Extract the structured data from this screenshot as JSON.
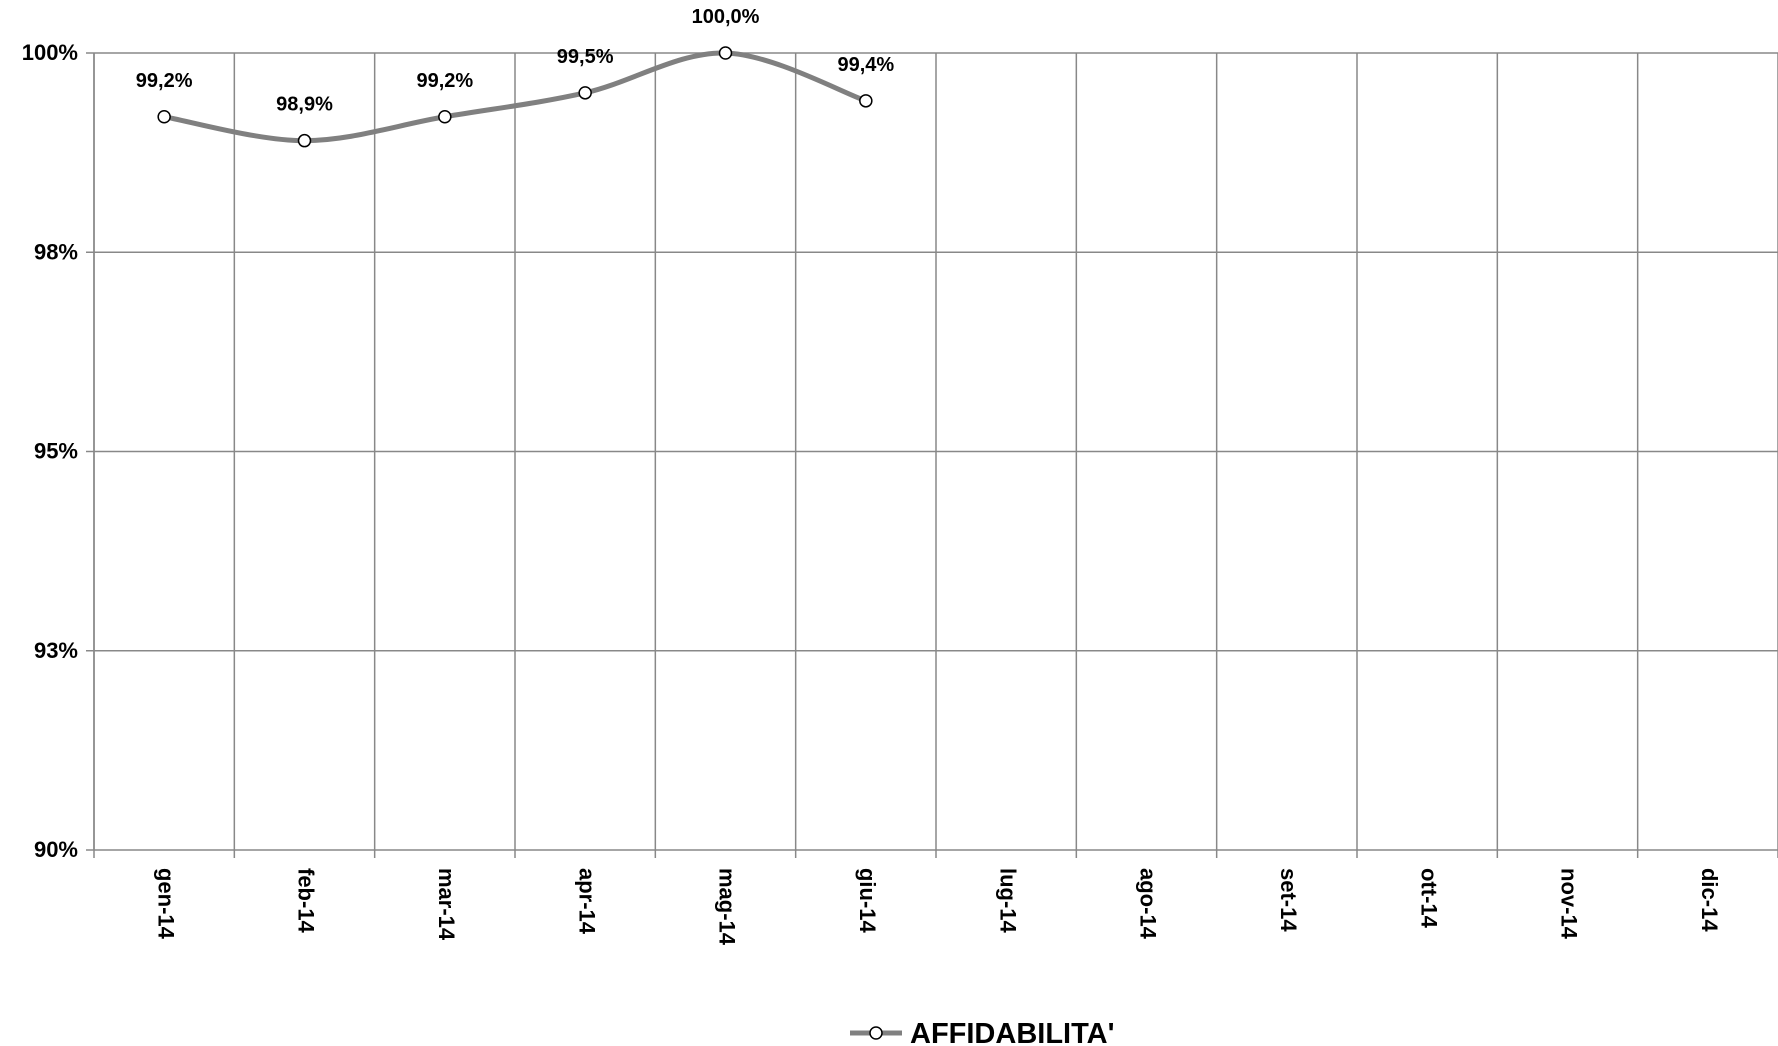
{
  "chart_data": {
    "type": "line",
    "categories": [
      "gen-14",
      "feb-14",
      "mar-14",
      "apr-14",
      "mag-14",
      "giu-14",
      "lug-14",
      "ago-14",
      "set-14",
      "ott-14",
      "nov-14",
      "dic-14"
    ],
    "series": [
      {
        "name": "AFFIDABILITA'",
        "color": "#808080",
        "values": [
          99.2,
          98.9,
          99.2,
          99.5,
          100.0,
          99.4,
          null,
          null,
          null,
          null,
          null,
          null
        ],
        "value_labels": [
          "99,2%",
          "98,9%",
          "99,2%",
          "99,5%",
          "100,0%",
          "99,4%",
          null,
          null,
          null,
          null,
          null,
          null
        ]
      }
    ],
    "ylim": [
      90,
      100
    ],
    "yticks": [
      {
        "value": 90,
        "label": "90%"
      },
      {
        "value": 92.5,
        "label": "93%"
      },
      {
        "value": 95,
        "label": "95%"
      },
      {
        "value": 97.5,
        "label": "98%"
      },
      {
        "value": 100,
        "label": "100%"
      }
    ],
    "grid": true,
    "smooth": true,
    "legend": "bottom"
  }
}
